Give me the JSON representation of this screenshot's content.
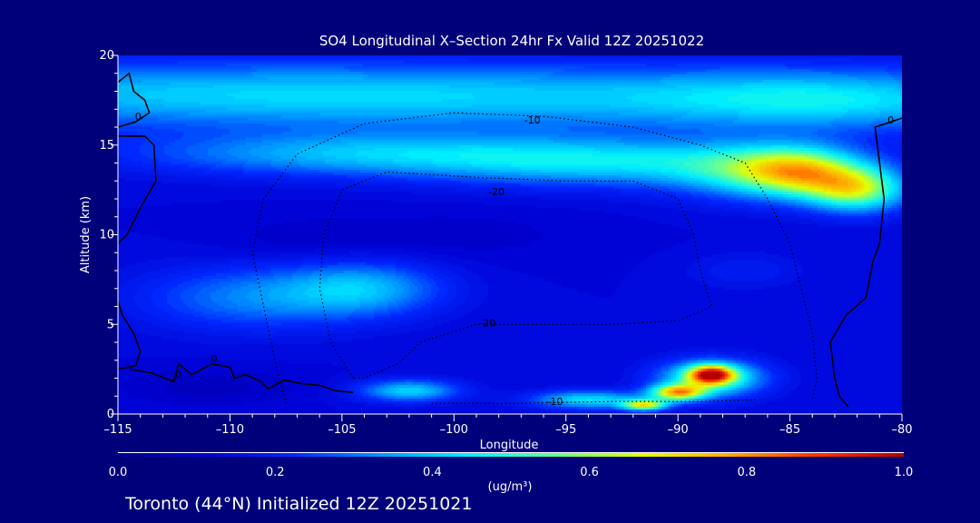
{
  "chart_data": {
    "type": "heatmap",
    "title": "SO4 Longitudinal X–Section 24hr  Fx Valid 12Z 20251022",
    "xlabel": "Longitude",
    "ylabel": "Altitude (km)",
    "xlim": [
      -115,
      -80
    ],
    "ylim": [
      0,
      20
    ],
    "x_ticks": [
      -115,
      -110,
      -105,
      -100,
      -95,
      -90,
      -85,
      -80
    ],
    "x_tick_labels": [
      "–115",
      "–110",
      "–105",
      "–100",
      "–95",
      "–90",
      "–85",
      "–80"
    ],
    "y_ticks": [
      0,
      5,
      10,
      15,
      20
    ],
    "y_tick_labels": [
      "0",
      "5",
      "10",
      "15",
      "20"
    ],
    "colorbar": {
      "min": 0.0,
      "max": 1.0,
      "ticks": [
        0.0,
        0.2,
        0.4,
        0.6,
        0.8,
        1.0
      ],
      "tick_labels": [
        "0.0",
        "0.2",
        "0.4",
        "0.6",
        "0.8",
        "1.0"
      ],
      "unit_label": "(ug/m³)",
      "colors": [
        "#00008c",
        "#0000d2",
        "#0028ff",
        "#0096ff",
        "#00f0ff",
        "#64ff96",
        "#e6ff00",
        "#ffaa00",
        "#ff3200",
        "#b40000"
      ]
    },
    "hotspots": [
      {
        "x": -112,
        "y": 18,
        "value": 0.16,
        "sx": 25,
        "sy": 1.8
      },
      {
        "x": -98,
        "y": 17.5,
        "value": 0.16,
        "sx": 25,
        "sy": 1.8
      },
      {
        "x": -83,
        "y": 17.5,
        "value": 0.18,
        "sx": 8,
        "sy": 1.6
      },
      {
        "x": -104,
        "y": 14.5,
        "value": 0.24,
        "sx": 10,
        "sy": 1.2
      },
      {
        "x": -93,
        "y": 14,
        "value": 0.25,
        "sx": 8,
        "sy": 1.3
      },
      {
        "x": -86,
        "y": 13.5,
        "value": 0.3,
        "sx": 4,
        "sy": 1.5
      },
      {
        "x": -82,
        "y": 12.5,
        "value": 0.44,
        "sx": 2.2,
        "sy": 1.2
      },
      {
        "x": -84.5,
        "y": 13.5,
        "value": 0.3,
        "sx": 2.5,
        "sy": 1.3
      },
      {
        "x": -87,
        "y": 8,
        "value": 0.06,
        "sx": 2.5,
        "sy": 1.0
      },
      {
        "x": -104,
        "y": 7,
        "value": 0.22,
        "sx": 3.5,
        "sy": 1.5
      },
      {
        "x": -109,
        "y": 6.5,
        "value": 0.18,
        "sx": 5,
        "sy": 1.8
      },
      {
        "x": -102,
        "y": 1.3,
        "value": 0.28,
        "sx": 2.2,
        "sy": 0.6
      },
      {
        "x": -94,
        "y": 0.8,
        "value": 0.3,
        "sx": 2.5,
        "sy": 0.5
      },
      {
        "x": -88.5,
        "y": 2,
        "value": 0.4,
        "sx": 2.3,
        "sy": 1.0
      },
      {
        "x": -88.5,
        "y": 2.2,
        "value": 0.6,
        "sx": 1.0,
        "sy": 0.5
      },
      {
        "x": -90,
        "y": 1.2,
        "value": 0.55,
        "sx": 1.2,
        "sy": 0.45
      },
      {
        "x": -91.5,
        "y": 0.5,
        "value": 0.5,
        "sx": 1.0,
        "sy": 0.3
      },
      {
        "x": -111,
        "y": 1.5,
        "value": -0.05,
        "sx": 4,
        "sy": 1.0
      },
      {
        "x": -107,
        "y": 9.5,
        "value": -0.03,
        "sx": 4,
        "sy": 1.5
      },
      {
        "x": -100,
        "y": 10,
        "value": -0.03,
        "sx": 6,
        "sy": 1.5
      }
    ],
    "contours": [
      {
        "label": "0",
        "style": "solid",
        "points": [
          [
            -115,
            18.5
          ],
          [
            -114.5,
            19
          ],
          [
            -114.3,
            18
          ],
          [
            -113.8,
            17.5
          ],
          [
            -113.6,
            16.8
          ],
          [
            -114.2,
            16.3
          ],
          [
            -115,
            16.0
          ]
        ]
      },
      {
        "label": "0",
        "style": "solid",
        "points": [
          [
            -115,
            15.5
          ],
          [
            -113.8,
            15.5
          ],
          [
            -113.4,
            15
          ],
          [
            -113.3,
            13
          ],
          [
            -114.0,
            11.5
          ],
          [
            -114.6,
            10.0
          ],
          [
            -115,
            9.5
          ]
        ]
      },
      {
        "label": "0",
        "style": "solid",
        "points": [
          [
            -115,
            6.3
          ],
          [
            -114.8,
            5.5
          ],
          [
            -114.3,
            4.5
          ],
          [
            -114.0,
            3.5
          ],
          [
            -114.2,
            2.7
          ],
          [
            -115,
            2.5
          ]
        ]
      },
      {
        "label": "0",
        "style": "solid",
        "points": [
          [
            -114.5,
            2.5
          ],
          [
            -113.5,
            2.3
          ],
          [
            -112.5,
            1.8
          ],
          [
            -112.3,
            2.8
          ],
          [
            -111.7,
            2.2
          ],
          [
            -110.8,
            2.8
          ],
          [
            -110.0,
            2.6
          ],
          [
            -109.8,
            2.0
          ],
          [
            -109.3,
            2.2
          ],
          [
            -108.6,
            1.8
          ],
          [
            -108.3,
            1.4
          ],
          [
            -107.6,
            1.9
          ],
          [
            -106.8,
            1.7
          ],
          [
            -106.0,
            1.6
          ],
          [
            -105.3,
            1.3
          ],
          [
            -104.5,
            1.2
          ]
        ]
      },
      {
        "label": "0",
        "style": "solid",
        "points": [
          [
            -80,
            16.5
          ],
          [
            -81.2,
            16.0
          ],
          [
            -81.0,
            14.0
          ],
          [
            -80.8,
            12.0
          ],
          [
            -81.0,
            9.5
          ],
          [
            -81.3,
            8.5
          ],
          [
            -81.6,
            6.5
          ],
          [
            -82.5,
            5.5
          ],
          [
            -83.2,
            4.0
          ],
          [
            -83.0,
            2.0
          ],
          [
            -82.8,
            1.0
          ],
          [
            -82.4,
            0.4
          ]
        ]
      },
      {
        "label": "-10",
        "style": "dotted",
        "points": [
          [
            -107.5,
            0.6
          ],
          [
            -108.0,
            3.0
          ],
          [
            -108.5,
            6.0
          ],
          [
            -109.0,
            9.0
          ],
          [
            -108.5,
            12.0
          ],
          [
            -107.0,
            14.5
          ],
          [
            -104.0,
            16.2
          ],
          [
            -100.0,
            16.8
          ],
          [
            -96.0,
            16.6
          ],
          [
            -92.0,
            16.0
          ],
          [
            -89.0,
            15.0
          ],
          [
            -87.0,
            14.0
          ],
          [
            -86.0,
            12.0
          ],
          [
            -85.0,
            9.5
          ],
          [
            -84.5,
            7.0
          ],
          [
            -84.0,
            4.5
          ],
          [
            -83.8,
            2.0
          ],
          [
            -84.0,
            0.8
          ]
        ]
      },
      {
        "label": "-10",
        "style": "dotted",
        "points": [
          [
            -101,
            0.6
          ],
          [
            -97,
            0.6
          ],
          [
            -93,
            0.7
          ],
          [
            -89,
            0.7
          ],
          [
            -86.5,
            0.8
          ]
        ]
      },
      {
        "label": "-20",
        "style": "dotted",
        "points": [
          [
            -104.5,
            2.0
          ],
          [
            -105.5,
            4.0
          ],
          [
            -106.0,
            7.0
          ],
          [
            -105.8,
            10.0
          ],
          [
            -105.0,
            12.5
          ],
          [
            -103.0,
            13.5
          ],
          [
            -99.0,
            13.2
          ],
          [
            -95.0,
            13.0
          ],
          [
            -92.0,
            13.0
          ],
          [
            -90.0,
            12.0
          ],
          [
            -89.3,
            10.0
          ],
          [
            -89.0,
            8.0
          ],
          [
            -88.5,
            6.0
          ],
          [
            -90.0,
            5.2
          ],
          [
            -93.0,
            5.0
          ],
          [
            -96.0,
            5.0
          ],
          [
            -99.0,
            5.0
          ],
          [
            -101.5,
            4.0
          ],
          [
            -102.5,
            2.8
          ],
          [
            -104.0,
            2.0
          ],
          [
            -104.5,
            2.0
          ]
        ]
      }
    ],
    "contour_labels": [
      {
        "text": "0",
        "x": -114.1,
        "y": 16.6
      },
      {
        "text": "0",
        "x": -112.3,
        "y": 2.2
      },
      {
        "text": "0",
        "x": -110.7,
        "y": 3.1
      },
      {
        "text": "0",
        "x": -80.5,
        "y": 16.4
      },
      {
        "text": "-10",
        "x": -96.5,
        "y": 16.4
      },
      {
        "text": "-20",
        "x": -98.1,
        "y": 12.4
      },
      {
        "text": "-20",
        "x": -98.5,
        "y": 5.1
      },
      {
        "text": "-10",
        "x": -95.5,
        "y": 0.7
      }
    ],
    "footer": "Toronto (44°N) Initialized 12Z 20251021"
  }
}
